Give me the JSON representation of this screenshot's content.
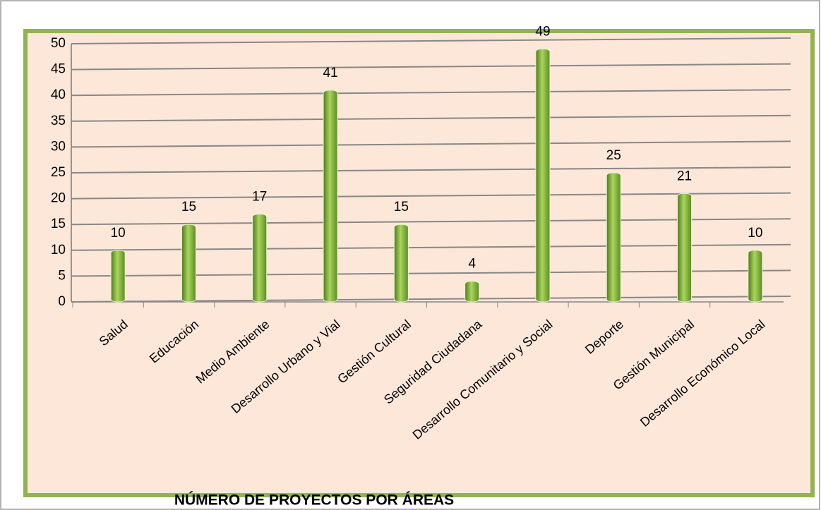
{
  "chart_data": {
    "type": "bar",
    "title": "NÚMERO DE PROYECTOS POR ÁREAS",
    "categories": [
      "Salud",
      "Educación",
      "Medio Ambiente",
      "Desarrollo Urbano y Vial",
      "Gestión Cultural",
      "Seguridad Ciudadana",
      "Desarrollo Comunitario y Social",
      "Deporte",
      "Gestión Municipal",
      "Desarrollo Económico Local"
    ],
    "values": [
      10,
      15,
      17,
      41,
      15,
      4,
      49,
      25,
      21,
      10
    ],
    "color": "#8cbf3f",
    "ylim": [
      0,
      50
    ],
    "yticks": [
      0,
      5,
      10,
      15,
      20,
      25,
      30,
      35,
      40,
      45,
      50
    ],
    "grid": true
  }
}
